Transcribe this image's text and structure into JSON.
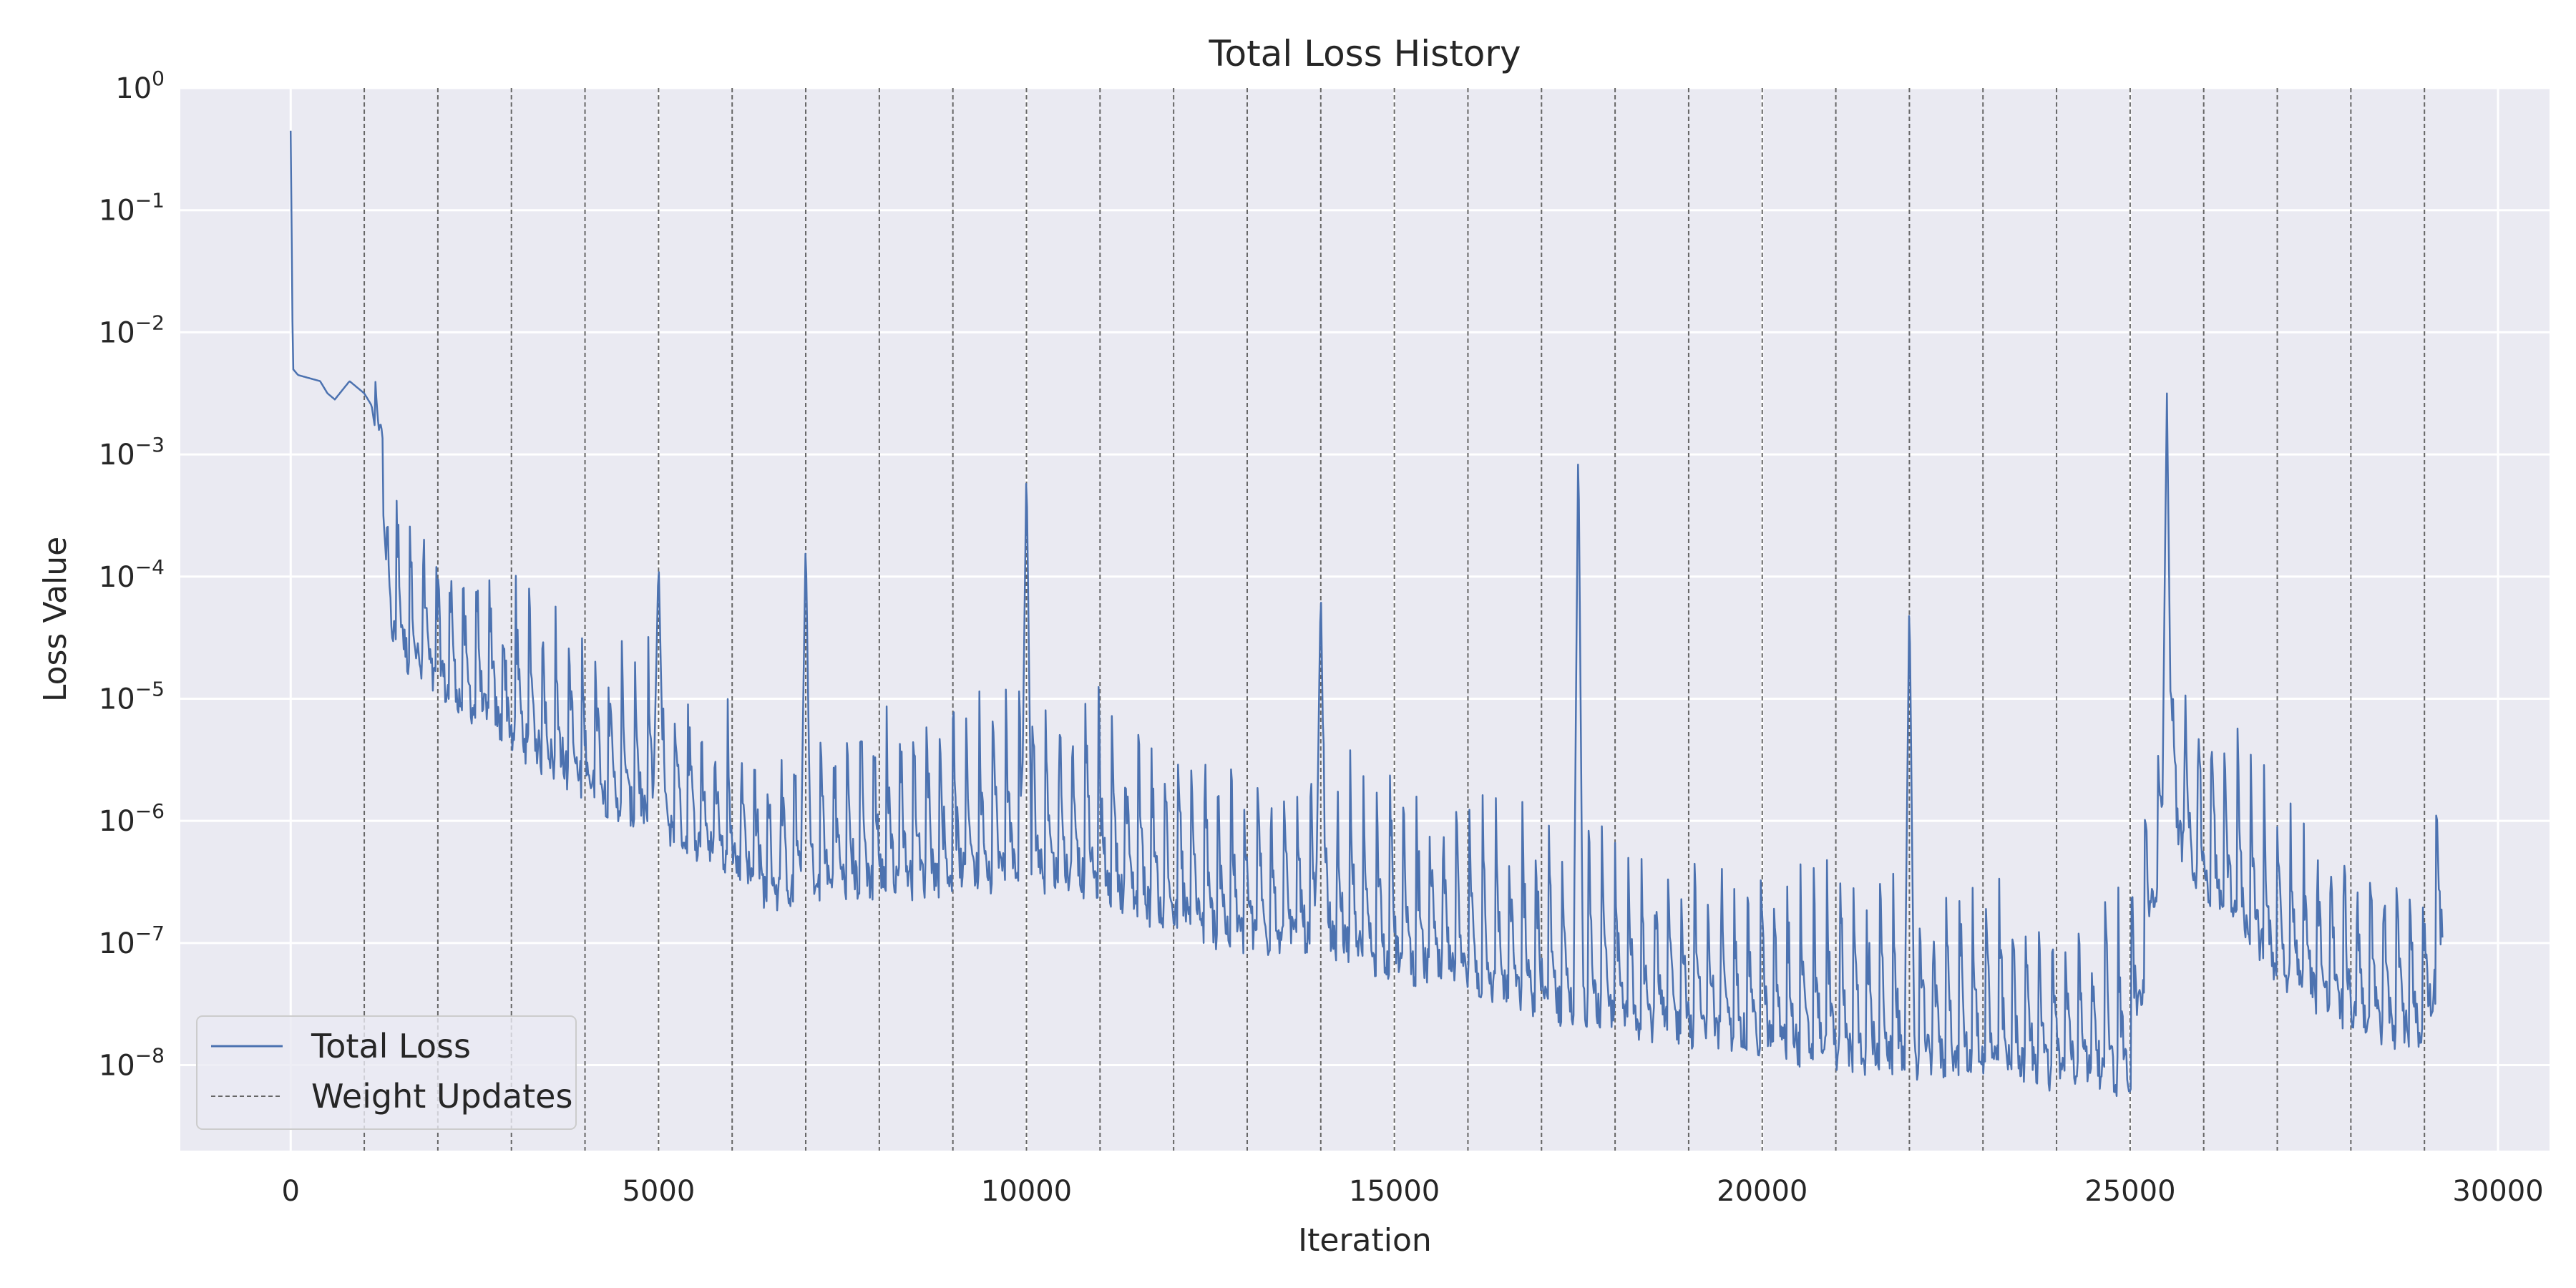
{
  "chart_data": {
    "type": "line",
    "title": "Total Loss History",
    "xlabel": "Iteration",
    "ylabel": "Loss Value",
    "xlim": [
      -1500,
      30700
    ],
    "ylim_log10": [
      -8.7,
      0
    ],
    "x_ticks": [
      0,
      5000,
      10000,
      15000,
      20000,
      25000,
      30000
    ],
    "y_ticks": [
      {
        "exp": 0,
        "base": "10",
        "sup": "0"
      },
      {
        "exp": -1,
        "base": "10",
        "sup": "−1"
      },
      {
        "exp": -2,
        "base": "10",
        "sup": "−2"
      },
      {
        "exp": -3,
        "base": "10",
        "sup": "−3"
      },
      {
        "exp": -4,
        "base": "10",
        "sup": "−4"
      },
      {
        "exp": -5,
        "base": "10",
        "sup": "−5"
      },
      {
        "exp": -6,
        "base": "10",
        "sup": "−6"
      },
      {
        "exp": -7,
        "base": "10",
        "sup": "−7"
      },
      {
        "exp": -8,
        "base": "10",
        "sup": "−8"
      }
    ],
    "weight_updates": [
      1000,
      2000,
      3000,
      4000,
      5000,
      6000,
      7000,
      8000,
      9000,
      10000,
      11000,
      12000,
      13000,
      14000,
      15000,
      16000,
      17000,
      18000,
      19000,
      20000,
      21000,
      22000,
      23000,
      24000,
      25000,
      26000,
      27000,
      28000,
      29000
    ],
    "series": [
      {
        "name": "Total Loss",
        "color": "#4c72b0",
        "x_range": [
          0,
          29250
        ],
        "anchors_log10": [
          [
            0,
            -0.35
          ],
          [
            30,
            -2.3
          ],
          [
            100,
            -2.35
          ],
          [
            400,
            -2.4
          ],
          [
            500,
            -2.5
          ],
          [
            600,
            -2.55
          ],
          [
            800,
            -2.4
          ],
          [
            900,
            -2.45
          ],
          [
            1000,
            -2.5
          ],
          [
            1100,
            -2.6
          ],
          [
            1200,
            -3.0
          ],
          [
            1250,
            -3.4
          ],
          [
            1350,
            -4.4
          ],
          [
            1500,
            -4.6
          ],
          [
            2000,
            -4.9
          ],
          [
            3000,
            -5.3
          ],
          [
            4000,
            -5.7
          ],
          [
            5000,
            -6.05
          ],
          [
            6000,
            -6.35
          ],
          [
            6500,
            -6.6
          ],
          [
            7000,
            -6.6
          ],
          [
            7500,
            -6.5
          ],
          [
            8000,
            -6.5
          ],
          [
            9000,
            -6.45
          ],
          [
            10000,
            -6.4
          ],
          [
            11000,
            -6.5
          ],
          [
            12000,
            -6.8
          ],
          [
            13000,
            -6.95
          ],
          [
            14000,
            -7.0
          ],
          [
            15000,
            -7.15
          ],
          [
            16000,
            -7.3
          ],
          [
            17000,
            -7.5
          ],
          [
            18000,
            -7.6
          ],
          [
            19000,
            -7.7
          ],
          [
            20000,
            -7.8
          ],
          [
            21000,
            -7.9
          ],
          [
            22000,
            -7.95
          ],
          [
            23000,
            -8.0
          ],
          [
            24000,
            -8.05
          ],
          [
            25000,
            -8.1
          ],
          [
            25500,
            -6.0
          ],
          [
            26000,
            -6.5
          ],
          [
            27000,
            -7.2
          ],
          [
            28000,
            -7.6
          ],
          [
            29000,
            -7.8
          ],
          [
            29250,
            -7.0
          ]
        ],
        "spikes": [
          {
            "x": 1200,
            "peak": -2.8
          },
          {
            "x": 5000,
            "peak": -3.85
          },
          {
            "x": 7000,
            "peak": -3.65
          },
          {
            "x": 10000,
            "peak": -3.05
          },
          {
            "x": 14000,
            "peak": -4.05
          },
          {
            "x": 17500,
            "peak": -2.8
          },
          {
            "x": 22000,
            "peak": -4.1
          },
          {
            "x": 25500,
            "peak": -2.5
          }
        ]
      },
      {
        "name": "Weight Updates",
        "color": "#666666",
        "style": "dashed"
      }
    ],
    "legend_position": "lower-left",
    "grid": true
  }
}
